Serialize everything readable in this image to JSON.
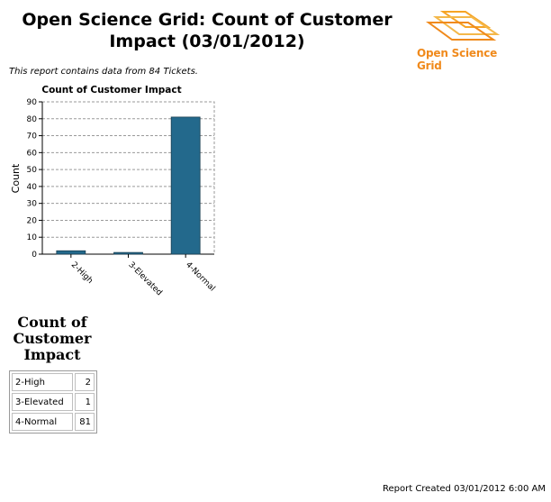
{
  "header": {
    "title": "Open Science Grid: Count of Customer Impact (03/01/2012)",
    "logo_text": "Open Science Grid"
  },
  "report_note": "This report contains data from 84 Tickets.",
  "chart_data": {
    "type": "bar",
    "title": "Count of Customer Impact",
    "xlabel": "",
    "ylabel": "Count",
    "categories": [
      "2-High",
      "3-Elevated",
      "4-Normal"
    ],
    "values": [
      2,
      1,
      81
    ],
    "ylim": [
      0,
      90
    ],
    "yticks": [
      0,
      10,
      20,
      30,
      40,
      50,
      60,
      70,
      80,
      90
    ],
    "grid": true,
    "bar_color": "#23698c"
  },
  "table": {
    "title": "Count of Customer Impact",
    "rows": [
      {
        "label": "2-High",
        "value": "2"
      },
      {
        "label": "3-Elevated",
        "value": "1"
      },
      {
        "label": "4-Normal",
        "value": "81"
      }
    ]
  },
  "footer": "Report Created 03/01/2012 6:00 AM",
  "colors": {
    "brand": "#f08a1c",
    "bar": "#23698c"
  }
}
